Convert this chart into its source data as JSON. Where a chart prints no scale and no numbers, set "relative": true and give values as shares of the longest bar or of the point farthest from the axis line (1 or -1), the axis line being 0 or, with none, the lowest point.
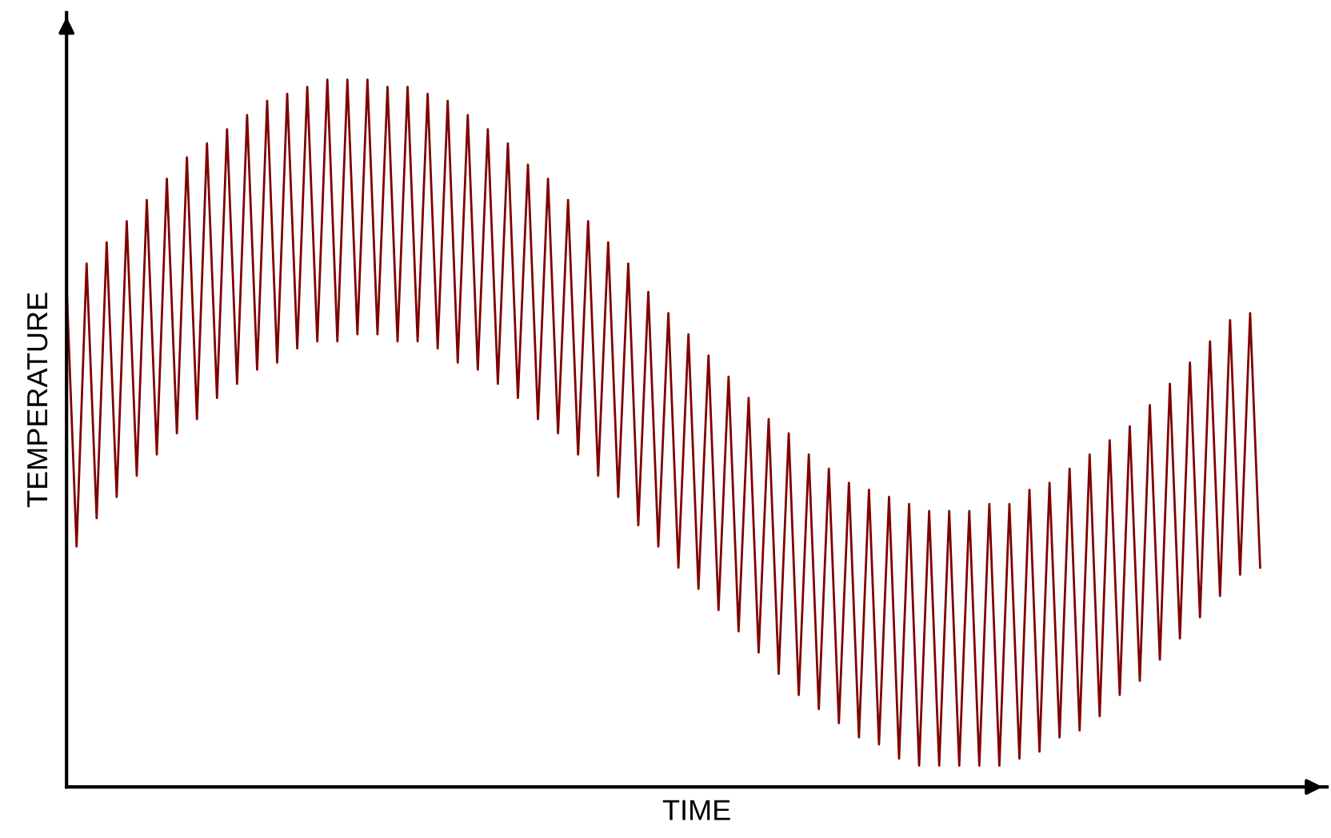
{
  "chart_data": {
    "type": "line",
    "relative": true,
    "xlabel": "TIME",
    "ylabel": "TEMPERATURE",
    "grid": false,
    "marker": "none",
    "line_style": "solid",
    "categories": [
      null,
      null,
      null,
      null,
      null,
      null,
      null,
      null,
      null,
      null,
      null,
      null,
      null,
      null,
      null,
      null,
      null,
      null,
      null,
      null,
      null,
      null,
      null,
      null,
      null,
      null,
      null,
      null,
      null,
      null,
      null,
      null,
      null,
      null,
      null,
      null,
      null,
      null,
      null,
      null,
      null,
      null,
      null,
      null,
      null,
      null,
      null,
      null,
      null,
      null,
      null,
      null,
      null,
      null,
      null,
      null,
      null,
      null,
      null,
      null,
      null,
      null,
      null,
      null,
      null,
      null,
      null,
      null,
      null,
      null,
      null,
      null,
      null,
      null,
      null,
      null,
      null,
      null,
      null,
      null,
      null,
      null,
      null,
      null,
      null,
      null,
      null,
      null,
      null,
      null,
      null,
      null,
      null,
      null,
      null,
      null,
      null,
      null,
      null,
      null,
      null,
      null,
      null,
      null,
      null,
      null,
      null,
      null,
      null,
      null,
      null,
      null,
      null,
      null,
      null,
      null,
      null,
      null,
      null,
      null
    ],
    "series": [
      {
        "color": "#7f0000",
        "values": [
          0.71,
          0.34,
          0.74,
          0.38,
          0.77,
          0.41,
          0.8,
          0.44,
          0.83,
          0.47,
          0.86,
          0.5,
          0.89,
          0.52,
          0.91,
          0.55,
          0.93,
          0.57,
          0.95,
          0.59,
          0.97,
          0.6,
          0.98,
          0.62,
          0.99,
          0.63,
          1.0,
          0.63,
          1.0,
          0.64,
          1.0,
          0.64,
          0.99,
          0.63,
          0.99,
          0.63,
          0.98,
          0.62,
          0.97,
          0.6,
          0.95,
          0.59,
          0.93,
          0.57,
          0.91,
          0.55,
          0.88,
          0.52,
          0.86,
          0.5,
          0.83,
          0.47,
          0.8,
          0.44,
          0.77,
          0.41,
          0.74,
          0.37,
          0.7,
          0.34,
          0.67,
          0.31,
          0.64,
          0.28,
          0.61,
          0.25,
          0.58,
          0.22,
          0.55,
          0.19,
          0.52,
          0.16,
          0.5,
          0.13,
          0.47,
          0.11,
          0.45,
          0.09,
          0.43,
          0.07,
          0.42,
          0.06,
          0.41,
          0.04,
          0.4,
          0.03,
          0.39,
          0.03,
          0.39,
          0.03,
          0.39,
          0.03,
          0.4,
          0.03,
          0.4,
          0.04,
          0.42,
          0.05,
          0.43,
          0.07,
          0.45,
          0.08,
          0.47,
          0.1,
          0.49,
          0.13,
          0.51,
          0.15,
          0.54,
          0.18,
          0.57,
          0.21,
          0.6,
          0.24,
          0.63,
          0.27,
          0.66,
          0.3,
          0.67,
          0.31
        ]
      }
    ]
  }
}
